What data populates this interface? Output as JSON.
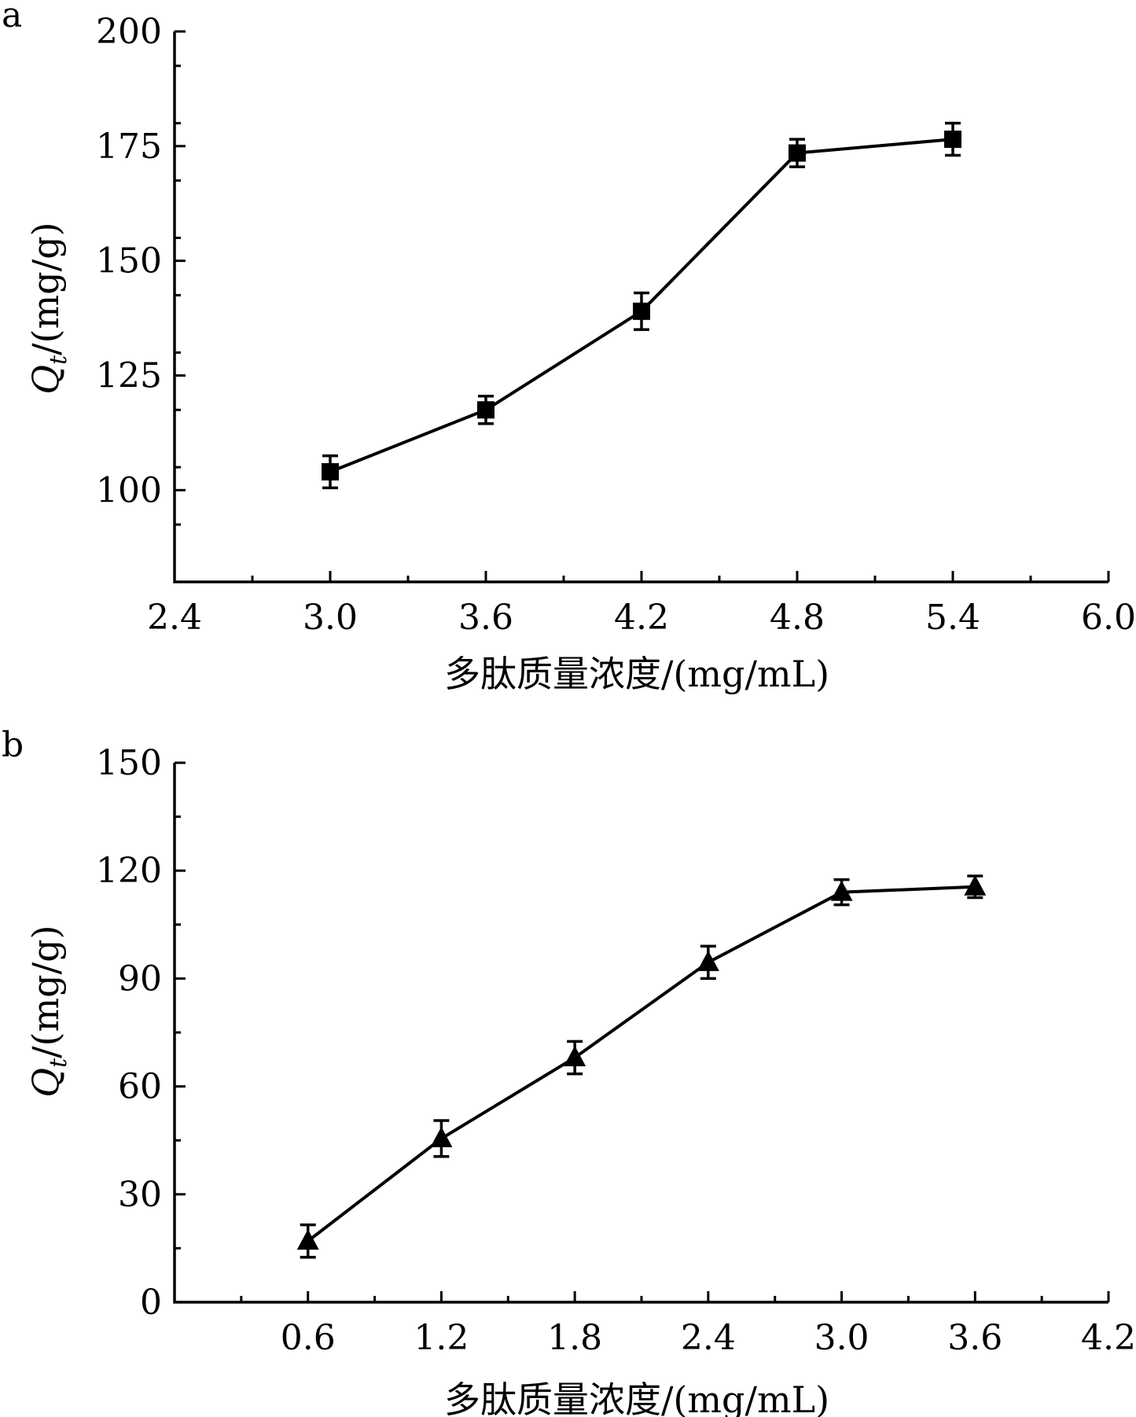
{
  "chart_data": [
    {
      "panel_label": "a",
      "type": "line",
      "xlabel": "多肽质量浓度/(mg/mL)",
      "ylabel_main": "Q",
      "ylabel_sub": "t",
      "ylabel_unit": "/(mg/g)",
      "xlim": [
        2.4,
        6.0
      ],
      "ylim": [
        80,
        200
      ],
      "xticks": [
        "2.4",
        "3.0",
        "3.6",
        "4.2",
        "4.8",
        "5.4",
        "6.0"
      ],
      "yticks": [
        "100",
        "125",
        "150",
        "175",
        "200"
      ],
      "marker": "square",
      "series": [
        {
          "x": [
            3.0,
            3.6,
            4.2,
            4.8,
            5.4
          ],
          "y": [
            104,
            117.5,
            139,
            173.5,
            176.5
          ],
          "error": [
            3.5,
            3,
            4,
            3,
            3.5
          ]
        }
      ]
    },
    {
      "panel_label": "b",
      "type": "line",
      "xlabel": "多肽质量浓度/(mg/mL)",
      "ylabel_main": "Q",
      "ylabel_sub": "t",
      "ylabel_unit": "/(mg/g)",
      "xlim": [
        0,
        4.2
      ],
      "ylim": [
        0,
        150
      ],
      "xticks": [
        "0.6",
        "1.2",
        "1.8",
        "2.4",
        "3.0",
        "3.6",
        "4.2"
      ],
      "yticks": [
        "0",
        "30",
        "60",
        "90",
        "120",
        "150"
      ],
      "marker": "triangle",
      "series": [
        {
          "x": [
            0.6,
            1.2,
            1.8,
            2.4,
            3.0,
            3.6
          ],
          "y": [
            17,
            45.5,
            68,
            94.5,
            114,
            115.5
          ],
          "error": [
            4.5,
            5,
            4.5,
            4.5,
            3.5,
            3
          ]
        }
      ]
    }
  ]
}
